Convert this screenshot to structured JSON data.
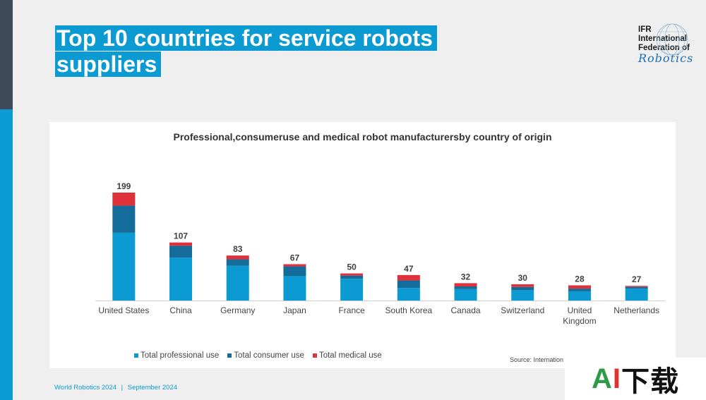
{
  "slide": {
    "title_line1": "Top 10 countries for service robots",
    "title_line2": "suppliers",
    "logo": {
      "line1": "IFR",
      "line2": "International",
      "line3": "Federation of",
      "script": "Robotics"
    },
    "footer": {
      "left": "World Robotics 2024",
      "sep": "|",
      "right": "September 2024"
    },
    "source": "Source: Internation",
    "watermark": {
      "a": "A",
      "i": "I",
      "rest": "下载"
    }
  },
  "colors": {
    "professional": "#0b9bd2",
    "consumer": "#146c9a",
    "medical": "#e0303a",
    "accent": "#0b9bd2"
  },
  "chart_data": {
    "type": "bar",
    "stacked": true,
    "title": "Professional,consumeruse and medical robot manufacturersby country of origin",
    "categories": [
      "United States",
      "China",
      "Germany",
      "Japan",
      "France",
      "South Korea",
      "Canada",
      "Switzerland",
      "United Kingdom",
      "Netherlands"
    ],
    "category_lines": [
      [
        "United States"
      ],
      [
        "China"
      ],
      [
        "Germany"
      ],
      [
        "Japan"
      ],
      [
        "France"
      ],
      [
        "South Korea"
      ],
      [
        "Canada"
      ],
      [
        "Switzerland"
      ],
      [
        "United",
        "Kingdom"
      ],
      [
        "Netherlands"
      ]
    ],
    "totals": [
      199,
      107,
      83,
      67,
      50,
      47,
      32,
      30,
      28,
      27
    ],
    "series": [
      {
        "name": "Total professional use",
        "color": "#0b9bd2",
        "values": [
          125,
          79,
          64,
          45,
          40,
          23,
          21,
          19,
          17,
          22
        ]
      },
      {
        "name": "Total consumer use",
        "color": "#146c9a",
        "values": [
          50,
          22,
          12,
          18,
          6,
          14,
          5,
          6,
          5,
          3
        ]
      },
      {
        "name": "Total medical use",
        "color": "#e0303a",
        "values": [
          24,
          6,
          7,
          4,
          4,
          10,
          6,
          5,
          6,
          2
        ]
      }
    ],
    "ylim": [
      0,
      199
    ],
    "grid": false,
    "legend": "bottom-left"
  }
}
